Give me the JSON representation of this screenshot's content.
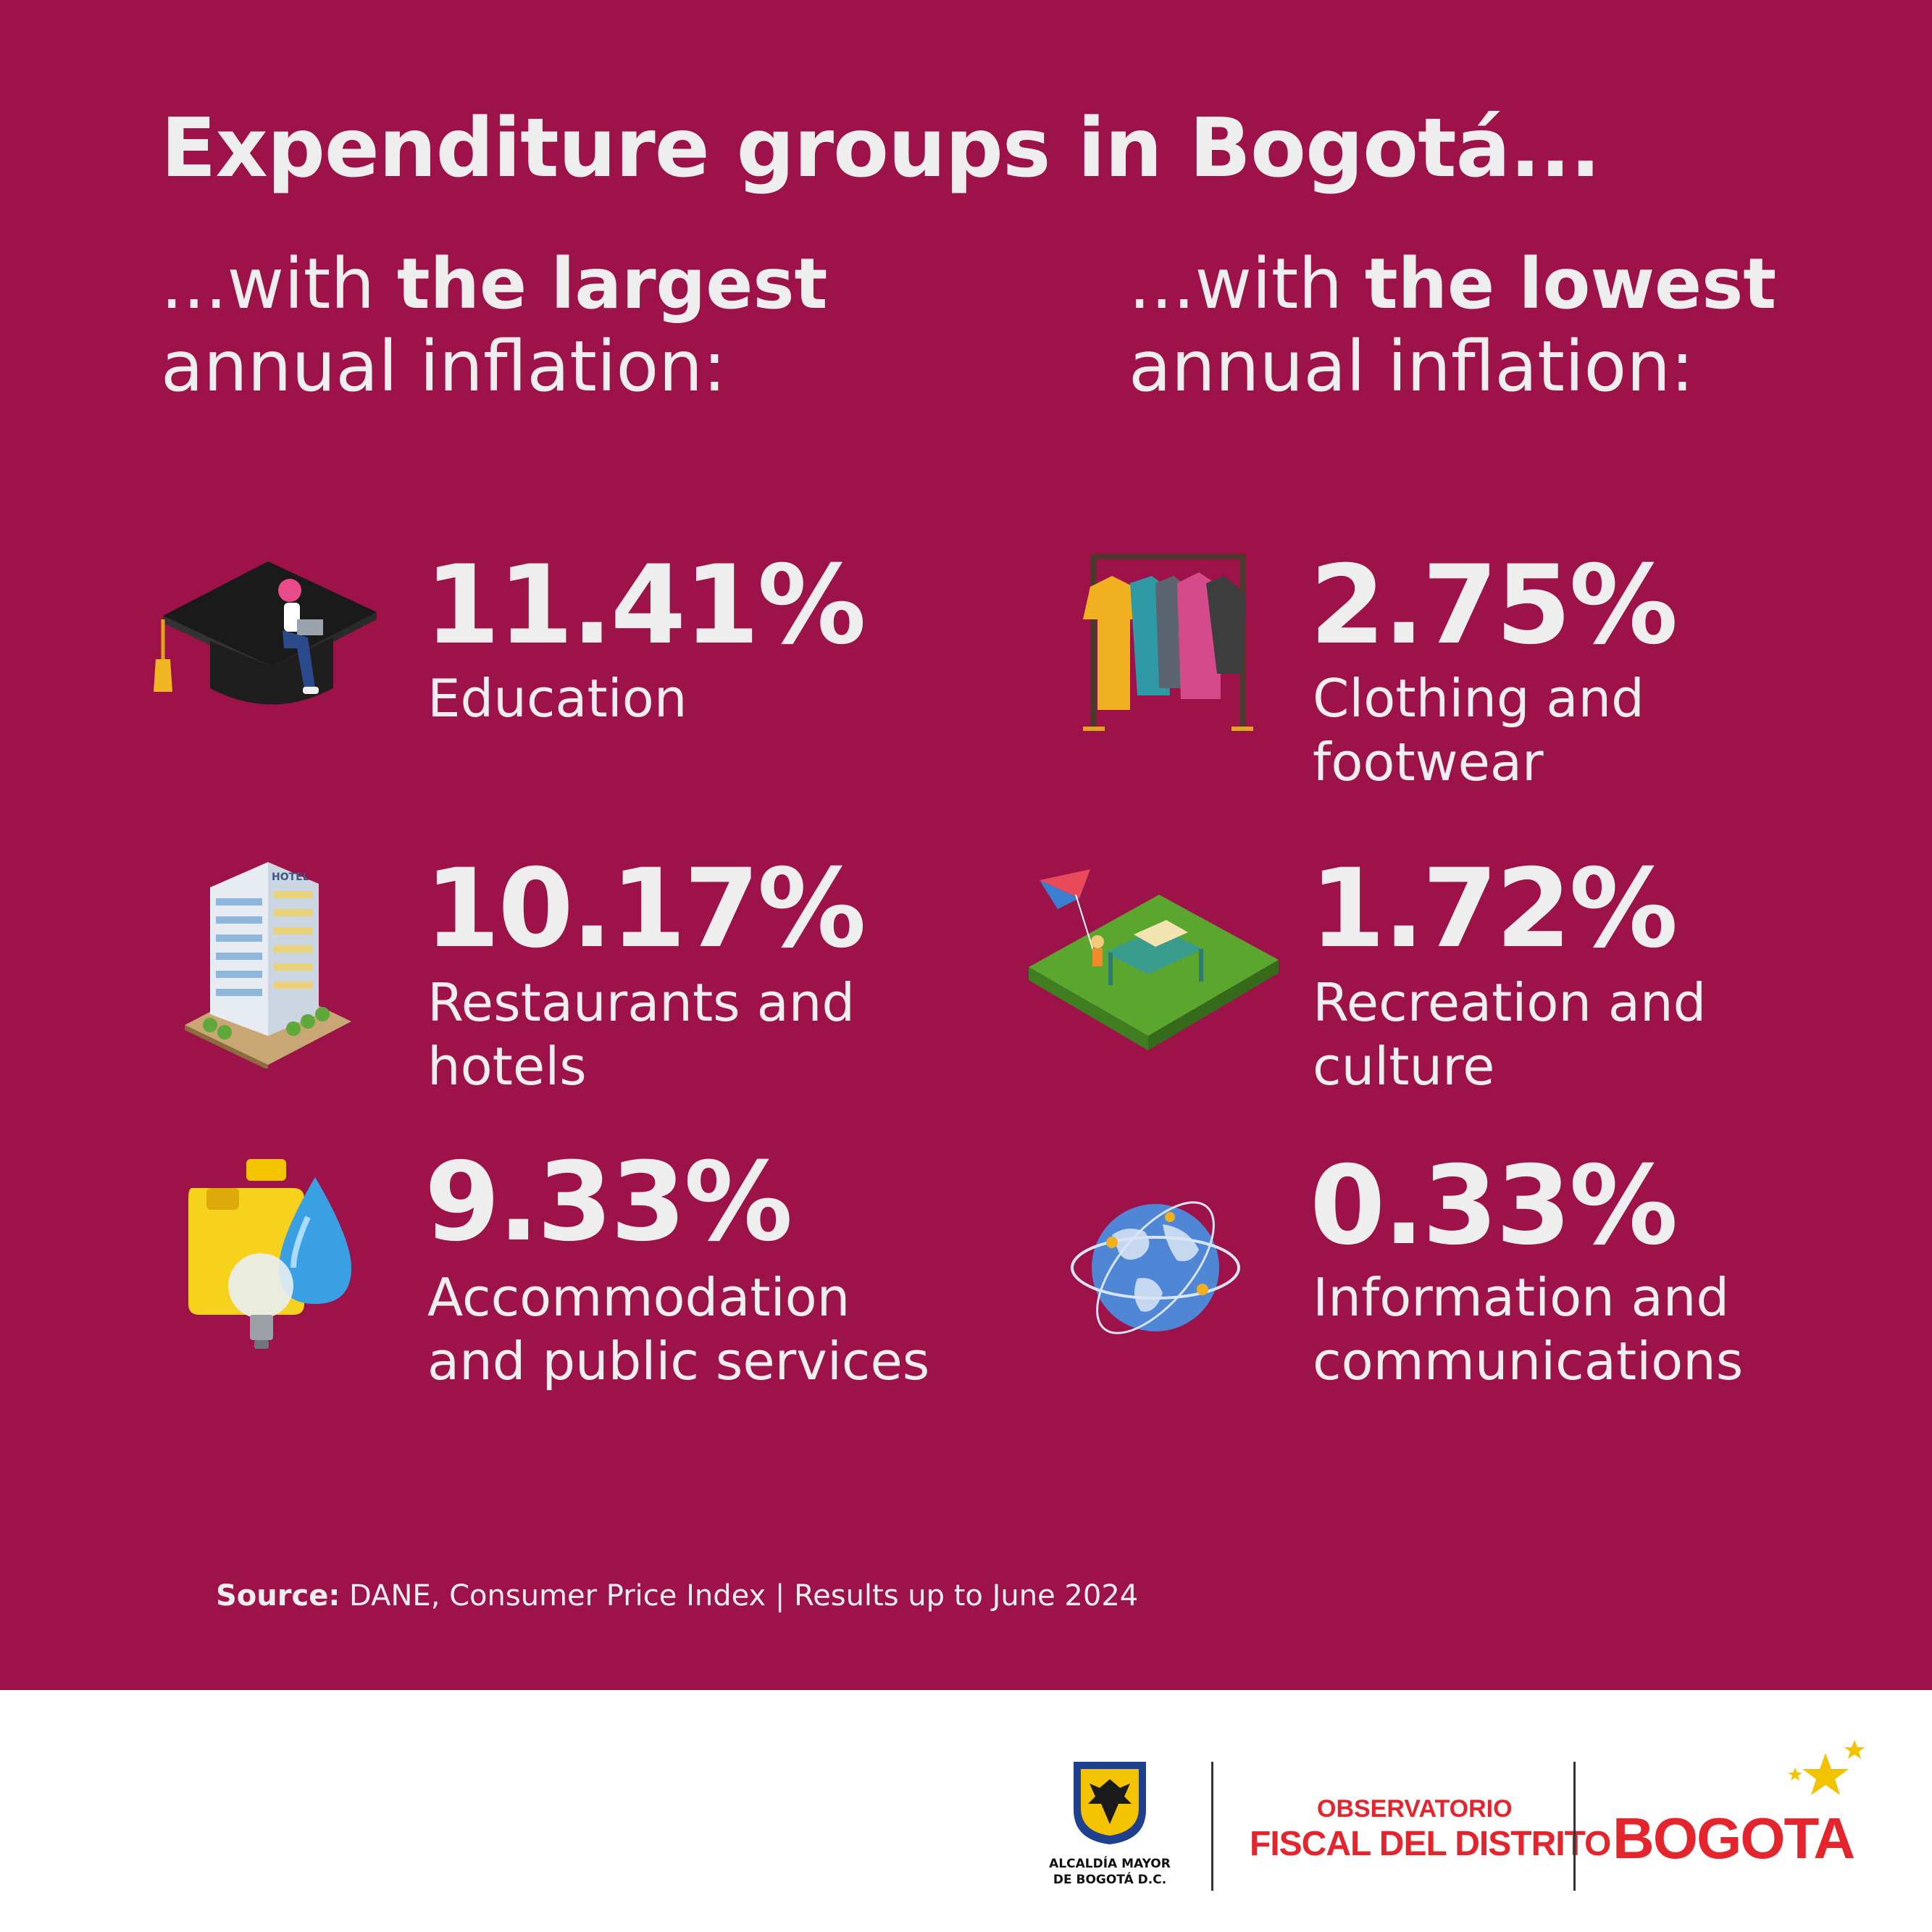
{
  "title": "Expenditure groups in Bogotá...",
  "left_heading": {
    "prefix": "...with ",
    "bold": "the largest",
    "line2": "annual inflation:"
  },
  "right_heading": {
    "prefix": "...with ",
    "bold": "the lowest",
    "line2": "annual inflation:"
  },
  "largest": [
    {
      "value": "11.41%",
      "label_line1": "Education",
      "label_line2": "",
      "icon": "graduation-cap-student-icon"
    },
    {
      "value": "10.17%",
      "label_line1": "Restaurants and",
      "label_line2": "hotels",
      "icon": "hotel-building-icon"
    },
    {
      "value": "9.33%",
      "label_line1": "Accommodation",
      "label_line2": "and public services",
      "icon": "utilities-gas-water-light-icon"
    }
  ],
  "lowest": [
    {
      "value": "2.75%",
      "label_line1": "Clothing and",
      "label_line2": "footwear",
      "icon": "clothing-rack-icon"
    },
    {
      "value": "1.72%",
      "label_line1": "Recreation and",
      "label_line2": "culture",
      "icon": "park-picnic-kite-icon"
    },
    {
      "value": "0.33%",
      "label_line1": "Information and",
      "label_line2": "communications",
      "icon": "globe-network-icon"
    }
  ],
  "source": {
    "label": "Source:",
    "text": " DANE, Consumer Price Index | Results up to June 2024"
  },
  "footer": {
    "alcaldia_line1": "ALCALDÍA MAYOR",
    "alcaldia_line2": "DE BOGOTÁ D.C.",
    "observatorio_line1": "OBSERVATORIO",
    "observatorio_line2": "FISCAL DEL DISTRITO",
    "bogota_logo": "BOGOTA"
  },
  "colors": {
    "background": "#9c1249",
    "text": "#eeeeee",
    "brand_red": "#e4252d"
  }
}
